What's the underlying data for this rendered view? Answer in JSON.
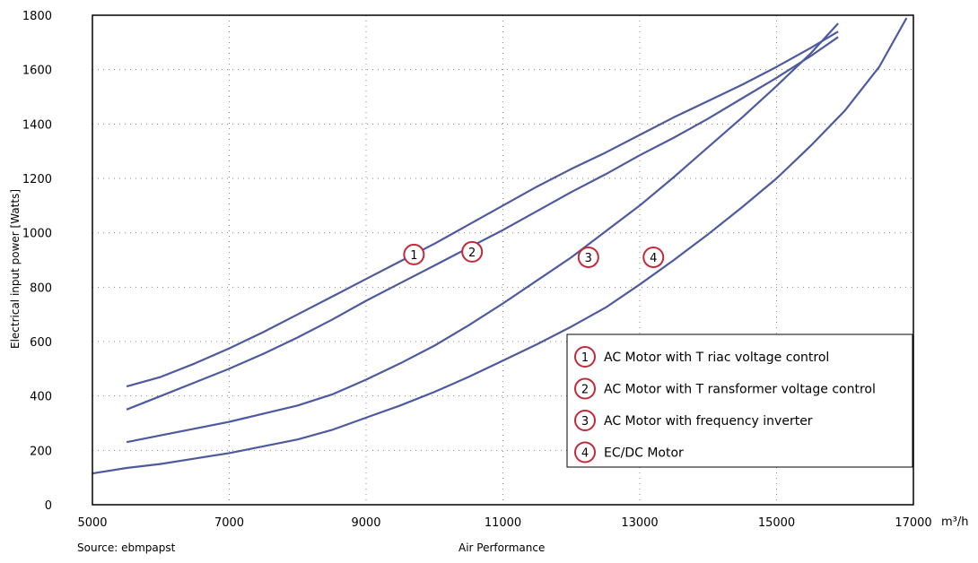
{
  "chart_data": {
    "type": "line",
    "xlabel": "Air Performance",
    "x_unit": "m³/h",
    "ylabel": "Electrical input power [Watts]",
    "xlim": [
      5000,
      17000
    ],
    "ylim": [
      0,
      1800
    ],
    "x_ticks": [
      5000,
      7000,
      9000,
      11000,
      13000,
      15000,
      17000
    ],
    "y_ticks": [
      0,
      200,
      400,
      600,
      800,
      1000,
      1200,
      1400,
      1600,
      1800
    ],
    "grid": true,
    "legend_position": "bottom-right",
    "series": [
      {
        "marker": "1",
        "name": "AC Motor with T riac voltage control",
        "x": [
          5500,
          6000,
          6500,
          7000,
          7500,
          8000,
          8500,
          9000,
          9500,
          10000,
          10500,
          11000,
          11500,
          12000,
          12500,
          13000,
          13500,
          14000,
          14500,
          15000,
          15500,
          15900
        ],
        "y": [
          435,
          470,
          520,
          575,
          635,
          700,
          765,
          830,
          895,
          960,
          1030,
          1100,
          1170,
          1235,
          1295,
          1360,
          1425,
          1485,
          1545,
          1610,
          1680,
          1740
        ]
      },
      {
        "marker": "2",
        "name": "AC Motor with T ransformer voltage control",
        "x": [
          5500,
          6000,
          6500,
          7000,
          7500,
          8000,
          8500,
          9000,
          9500,
          10000,
          10500,
          11000,
          11500,
          12000,
          12500,
          13000,
          13500,
          14000,
          14500,
          15000,
          15500,
          15900
        ],
        "y": [
          350,
          400,
          450,
          500,
          555,
          615,
          680,
          750,
          815,
          880,
          945,
          1010,
          1080,
          1150,
          1215,
          1285,
          1350,
          1420,
          1495,
          1570,
          1650,
          1720
        ]
      },
      {
        "marker": "3",
        "name": "AC Motor with frequency inverter",
        "x": [
          5500,
          6000,
          6500,
          7000,
          7500,
          8000,
          8500,
          9000,
          9500,
          10000,
          10500,
          11000,
          11500,
          12000,
          12500,
          13000,
          13500,
          14000,
          14500,
          15000,
          15500,
          15900
        ],
        "y": [
          230,
          255,
          280,
          305,
          335,
          365,
          405,
          460,
          520,
          585,
          660,
          740,
          825,
          910,
          1005,
          1100,
          1205,
          1315,
          1425,
          1540,
          1660,
          1770
        ]
      },
      {
        "marker": "4",
        "name": "EC/DC Motor",
        "x": [
          5000,
          5500,
          6000,
          6500,
          7000,
          7500,
          8000,
          8500,
          9000,
          9500,
          10000,
          10500,
          11000,
          11500,
          12000,
          12500,
          13000,
          13500,
          14000,
          14500,
          15000,
          15500,
          16000,
          16500,
          16900
        ],
        "y": [
          115,
          135,
          150,
          170,
          190,
          215,
          240,
          275,
          320,
          365,
          415,
          470,
          530,
          590,
          655,
          725,
          810,
          900,
          995,
          1095,
          1200,
          1320,
          1450,
          1610,
          1790
        ]
      }
    ],
    "markers": [
      {
        "label": "1",
        "x": 9700,
        "y": 920
      },
      {
        "label": "2",
        "x": 10550,
        "y": 930
      },
      {
        "label": "3",
        "x": 12250,
        "y": 910
      },
      {
        "label": "4",
        "x": 13200,
        "y": 910
      }
    ]
  },
  "footer": {
    "source": "Source: ebmpapst",
    "x_title": "Air Performance"
  },
  "colors": {
    "line": "#4e5aa0",
    "marker": "#c22a37",
    "grid": "#888888"
  }
}
